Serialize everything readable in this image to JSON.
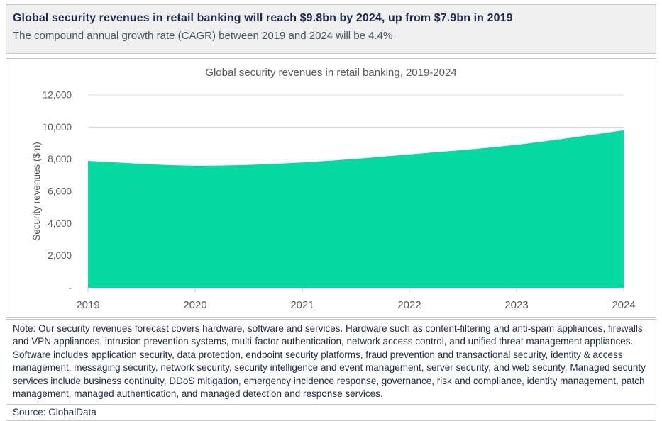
{
  "header": {
    "title": "Global security revenues in retail banking will reach $9.8bn by 2024, up from $7.9bn in 2019",
    "subtitle": "The compound annual growth rate (CAGR) between 2019 and 2024 will be 4.4%"
  },
  "chart_data": {
    "type": "area",
    "title": "Global security revenues in retail banking, 2019-2024",
    "xlabel": "",
    "ylabel": "Security revenues ($m)",
    "categories": [
      "2019",
      "2020",
      "2021",
      "2022",
      "2023",
      "2024"
    ],
    "series": [
      {
        "name": "Security revenues ($m)",
        "values": [
          7900,
          7600,
          7800,
          8300,
          8900,
          9800
        ]
      }
    ],
    "ylim": [
      0,
      12000
    ],
    "ytick_interval": 2000,
    "ytick_labels": [
      "-",
      "2,000",
      "4,000",
      "6,000",
      "8,000",
      "10,000",
      "12,000"
    ],
    "grid": true,
    "legend": false,
    "smooth": true,
    "colors": {
      "area_fill": "#03d9a1",
      "gridline": "#d9d9d9",
      "tick": "#bfbfbf",
      "axis_text": "#595959",
      "chart_title_text": "#595959"
    }
  },
  "note": {
    "text": "Note: Our security revenues forecast covers hardware, software and services. Hardware such as content-filtering and anti-spam appliances, firewalls and VPN appliances, intrusion prevention systems, multi-factor authentication, network access control, and unified threat management appliances. Software includes application security, data protection, endpoint security platforms, fraud prevention and transactional security, identity & access management, messaging security, network security, security intelligence and event management, server security, and web security. Managed security services include business continuity, DDoS mitigation, emergency incidence response, governance, risk and compliance, identity management, patch management, managed authentication, and managed detection and response services."
  },
  "source": {
    "text": "Source: GlobalData"
  },
  "colors": {
    "header_bg": "#efefef",
    "title_text": "#1f2b4d",
    "subtitle_text": "#44546a",
    "note_text": "#232c46",
    "border": "#c7c7c7"
  }
}
